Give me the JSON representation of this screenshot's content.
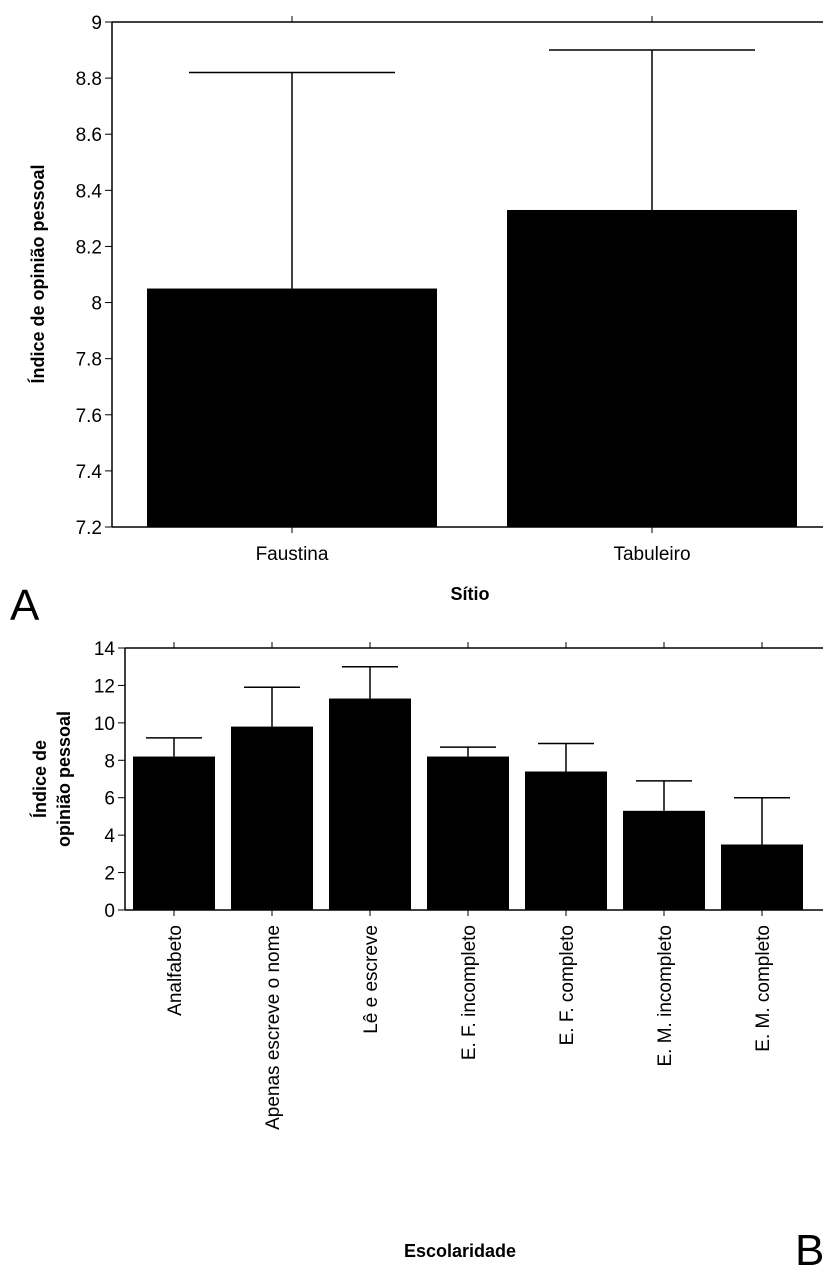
{
  "chart_data": [
    {
      "panel": "A",
      "type": "bar",
      "xlabel": "Sítio",
      "ylabel": "Índice de opinião pessoal",
      "ylim": [
        7.2,
        9.0
      ],
      "yticks": [
        "7.2",
        "7.4",
        "7.6",
        "7.8",
        "8",
        "8.2",
        "8.4",
        "8.6",
        "8.8",
        "9"
      ],
      "categories": [
        "Faustina",
        "Tabuleiro"
      ],
      "values": [
        8.05,
        8.33
      ],
      "error_upper": [
        8.82,
        8.9
      ],
      "grid": false
    },
    {
      "panel": "B",
      "type": "bar",
      "xlabel": "Escolaridade",
      "ylabel_lines": [
        "Índice de",
        "opinião pessoal"
      ],
      "ylim": [
        0,
        14
      ],
      "yticks": [
        "0",
        "2",
        "4",
        "6",
        "8",
        "10",
        "12",
        "14"
      ],
      "categories": [
        "Analfabeto",
        "Apenas escreve o nome",
        "Lê e escreve",
        "E. F. incompleto",
        "E. F. completo",
        "E. M. incompleto",
        "E. M. completo"
      ],
      "values": [
        8.2,
        9.8,
        11.3,
        8.2,
        7.4,
        5.3,
        3.5
      ],
      "error_upper": [
        9.2,
        11.9,
        13.0,
        8.7,
        8.9,
        6.9,
        6.0
      ],
      "grid": false
    }
  ]
}
